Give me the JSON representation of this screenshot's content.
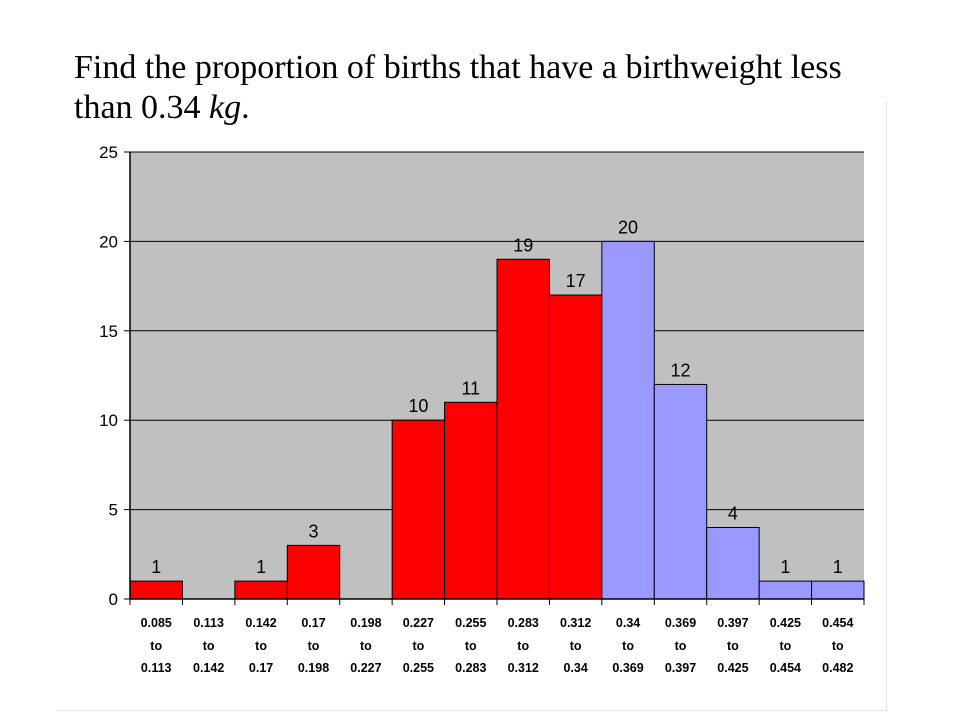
{
  "question": {
    "text": "Find the proportion of births that have a birthweight less than 0.34 ",
    "unit": "kg",
    "end": "."
  },
  "chart_data": {
    "type": "bar",
    "title": "",
    "xlabel": "",
    "ylabel": "",
    "ylim": [
      0,
      25
    ],
    "yticks": [
      0,
      5,
      10,
      15,
      20,
      25
    ],
    "grid": true,
    "connector": "to",
    "bins": [
      {
        "from": "0.085",
        "to": "0.113",
        "count": 1,
        "group": "below"
      },
      {
        "from": "0.113",
        "to": "0.142",
        "count": 0,
        "group": "below"
      },
      {
        "from": "0.142",
        "to": "0.17",
        "count": 1,
        "group": "below"
      },
      {
        "from": "0.17",
        "to": "0.198",
        "count": 3,
        "group": "below"
      },
      {
        "from": "0.198",
        "to": "0.227",
        "count": 0,
        "group": "below"
      },
      {
        "from": "0.227",
        "to": "0.255",
        "count": 10,
        "group": "below"
      },
      {
        "from": "0.255",
        "to": "0.283",
        "count": 11,
        "group": "below"
      },
      {
        "from": "0.283",
        "to": "0.312",
        "count": 19,
        "group": "below"
      },
      {
        "from": "0.312",
        "to": "0.34",
        "count": 17,
        "group": "below"
      },
      {
        "from": "0.34",
        "to": "0.369",
        "count": 20,
        "group": "above"
      },
      {
        "from": "0.369",
        "to": "0.397",
        "count": 12,
        "group": "above"
      },
      {
        "from": "0.397",
        "to": "0.425",
        "count": 4,
        "group": "above"
      },
      {
        "from": "0.425",
        "to": "0.454",
        "count": 1,
        "group": "above"
      },
      {
        "from": "0.454",
        "to": "0.482",
        "count": 1,
        "group": "above"
      }
    ],
    "colors": {
      "below": "#ff0000",
      "above": "#9999ff",
      "plot_background": "#c0c0c0",
      "gridline": "#000000"
    }
  }
}
